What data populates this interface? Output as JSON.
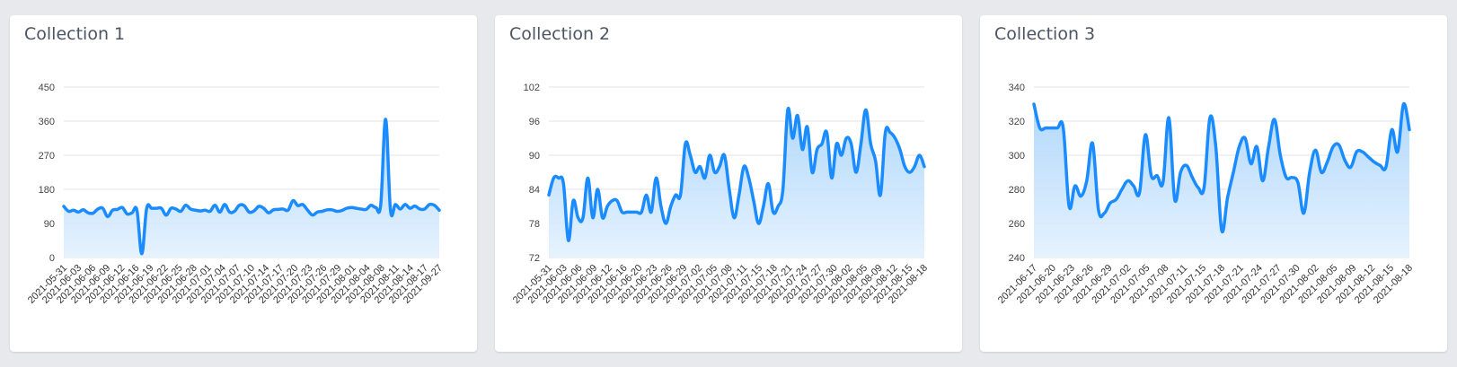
{
  "colors": {
    "line": "#1a8cff",
    "fill_top": "#a9d4fb",
    "fill_bottom": "#e3f1fe",
    "grid": "#e3e3e3"
  },
  "cards": [
    {
      "title": "Collection 1"
    },
    {
      "title": "Collection 2"
    },
    {
      "title": "Collection 3"
    }
  ],
  "chart_data": [
    {
      "type": "area",
      "title": "Collection 1",
      "y_ticks": [
        "0",
        "90",
        "180",
        "270",
        "360",
        "450"
      ],
      "ylim": [
        0,
        450
      ],
      "x_tick_labels": [
        "2021-05-31",
        "2021-06-03",
        "2021-06-06",
        "2021-06-09",
        "2021-06-12",
        "2021-06-16",
        "2021-06-19",
        "2021-06-22",
        "2021-06-25",
        "2021-06-28",
        "2021-07-01",
        "2021-07-04",
        "2021-07-07",
        "2021-07-10",
        "2021-07-14",
        "2021-07-17",
        "2021-07-20",
        "2021-07-23",
        "2021-07-26",
        "2021-07-29",
        "2021-08-01",
        "2021-08-04",
        "2021-08-08",
        "2021-08-11",
        "2021-08-14",
        "2021-08-17",
        "2021-09-27"
      ],
      "values": [
        135,
        122,
        125,
        120,
        126,
        118,
        117,
        128,
        130,
        108,
        125,
        127,
        132,
        115,
        118,
        125,
        10,
        130,
        130,
        130,
        130,
        112,
        130,
        128,
        122,
        138,
        128,
        125,
        123,
        125,
        122,
        138,
        120,
        140,
        120,
        122,
        138,
        137,
        120,
        123,
        135,
        130,
        118,
        126,
        127,
        128,
        125,
        150,
        137,
        140,
        125,
        112,
        120,
        122,
        126,
        126,
        122,
        124,
        130,
        132,
        130,
        128,
        127,
        138,
        132,
        140,
        365,
        125,
        140,
        128,
        140,
        130,
        136,
        128,
        128,
        140,
        138,
        125
      ]
    },
    {
      "type": "area",
      "title": "Collection 2",
      "y_ticks": [
        "72",
        "78",
        "84",
        "90",
        "96",
        "102"
      ],
      "ylim": [
        72,
        102
      ],
      "x_tick_labels": [
        "2021-05-31",
        "2021-06-03",
        "2021-06-06",
        "2021-06-09",
        "2021-06-12",
        "2021-06-16",
        "2021-06-20",
        "2021-06-23",
        "2021-06-26",
        "2021-06-29",
        "2021-07-02",
        "2021-07-05",
        "2021-07-08",
        "2021-07-11",
        "2021-07-15",
        "2021-07-18",
        "2021-07-21",
        "2021-07-24",
        "2021-07-27",
        "2021-07-30",
        "2021-08-02",
        "2021-08-05",
        "2021-08-09",
        "2021-08-12",
        "2021-08-15",
        "2021-08-18"
      ],
      "values": [
        83,
        86,
        86,
        85,
        75,
        82,
        79,
        79,
        86,
        79,
        84,
        79,
        81,
        82,
        82,
        80,
        80,
        80,
        80,
        80,
        83,
        80,
        86,
        81,
        78,
        81,
        83,
        83,
        92,
        90,
        87,
        88,
        86,
        90,
        87,
        88,
        90,
        84,
        79,
        83,
        88,
        86,
        82,
        78,
        81,
        85,
        80,
        81,
        84,
        98,
        93,
        97,
        91,
        95,
        87,
        91,
        92,
        94,
        86,
        92,
        90,
        93,
        92,
        87,
        92,
        98,
        92,
        89,
        83,
        94,
        94,
        93,
        91,
        88,
        87,
        88,
        90,
        88
      ]
    },
    {
      "type": "area",
      "title": "Collection 3",
      "y_ticks": [
        "240",
        "260",
        "280",
        "300",
        "320",
        "340"
      ],
      "ylim": [
        240,
        340
      ],
      "x_tick_labels": [
        "2021-06-17",
        "2021-06-20",
        "2021-06-23",
        "2021-06-26",
        "2021-06-29",
        "2021-07-02",
        "2021-07-05",
        "2021-07-08",
        "2021-07-11",
        "2021-07-15",
        "2021-07-18",
        "2021-07-21",
        "2021-07-24",
        "2021-07-27",
        "2021-07-30",
        "2021-08-02",
        "2021-08-05",
        "2021-08-09",
        "2021-08-12",
        "2021-08-15",
        "2021-08-18"
      ],
      "values": [
        330,
        316,
        316,
        316,
        316,
        316,
        270,
        282,
        276,
        285,
        307,
        268,
        266,
        272,
        274,
        280,
        285,
        282,
        278,
        312,
        288,
        288,
        284,
        322,
        274,
        290,
        294,
        287,
        281,
        281,
        322,
        305,
        256,
        275,
        290,
        305,
        310,
        295,
        305,
        285,
        305,
        321,
        300,
        287,
        287,
        284,
        266,
        290,
        303,
        290,
        296,
        305,
        306,
        297,
        293,
        302,
        302,
        299,
        296,
        294,
        293,
        315,
        302,
        330,
        315
      ]
    }
  ]
}
